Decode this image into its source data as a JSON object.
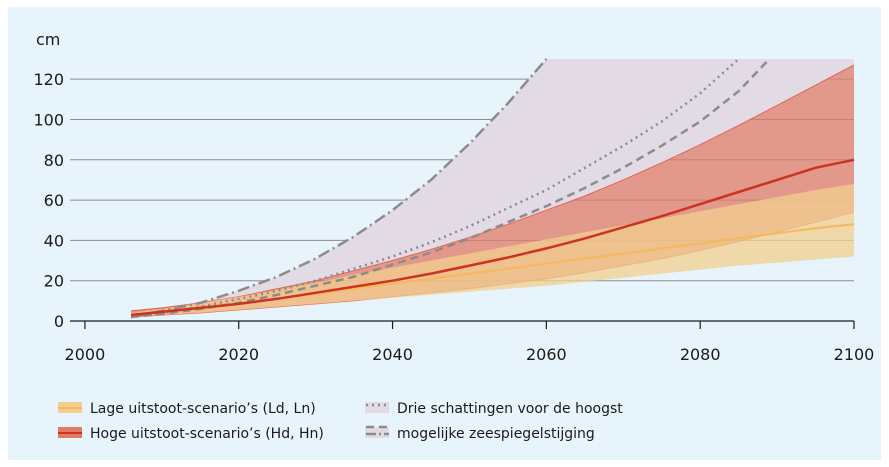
{
  "chart_data": {
    "type": "area",
    "y_unit_label": "cm",
    "xlim": [
      1990,
      2100
    ],
    "ylim": [
      0,
      130
    ],
    "x_ticks": [
      2000,
      2020,
      2040,
      2060,
      2080,
      2100
    ],
    "y_ticks": [
      0,
      20,
      40,
      60,
      80,
      100,
      120
    ],
    "grid": "horizontal",
    "x": [
      2006,
      2010,
      2015,
      2020,
      2025,
      2030,
      2035,
      2040,
      2045,
      2050,
      2055,
      2060,
      2065,
      2070,
      2075,
      2080,
      2085,
      2090,
      2095,
      2100
    ],
    "series": [
      {
        "name": "Lage uitstoot-scenario's (Ld, Ln)",
        "kind": "band",
        "color": "#f6b85c",
        "band_fill": "#f2cf8f",
        "central": [
          3,
          4.5,
          6.5,
          8.5,
          11,
          13.5,
          16,
          18.5,
          21,
          23.5,
          26,
          28.5,
          31,
          33.5,
          36,
          38.5,
          41,
          43.5,
          46,
          48
        ],
        "lower": [
          2,
          3,
          4,
          5.5,
          7,
          8.5,
          10,
          11.5,
          13,
          14.5,
          16,
          17.5,
          19.5,
          21.5,
          23.5,
          25.5,
          27.5,
          29,
          30.5,
          32
        ],
        "upper": [
          4,
          6,
          9,
          12,
          15.5,
          19,
          23,
          26.5,
          30,
          33.5,
          37,
          40.5,
          44,
          47.5,
          51,
          54.5,
          58,
          61.5,
          65,
          68
        ]
      },
      {
        "name": "Hoge uitstoot-scenario's (Hd, Hn)",
        "kind": "band",
        "color": "#cc3321",
        "band_fill": "#e07b66",
        "central": [
          3,
          4.5,
          6.5,
          8.5,
          11,
          14,
          17,
          20,
          23.5,
          27.5,
          31.5,
          36,
          41,
          46.5,
          52,
          58,
          64,
          70,
          76,
          80
        ],
        "lower": [
          2,
          3,
          4,
          5.5,
          7,
          8.5,
          10,
          12,
          14,
          16,
          18.5,
          21,
          24,
          27.5,
          31,
          35,
          39.5,
          44,
          49,
          54
        ],
        "upper": [
          5,
          6.5,
          9,
          12,
          16,
          20,
          25,
          30,
          35.5,
          41.5,
          48,
          55,
          62,
          70,
          78.5,
          87.5,
          97,
          107,
          117,
          127
        ]
      },
      {
        "name": "Drie schattingen voor de hoogst mogelijke zeespiegelstijging",
        "kind": "upper-envelope",
        "band_fill": "#e2dbe5",
        "curves": [
          {
            "style": "dashdot",
            "color": "#8c8c8c",
            "x": [
              2006,
              2010,
              2015,
              2020,
              2025,
              2030,
              2035,
              2040,
              2045,
              2050,
              2055,
              2060
            ],
            "y": [
              2,
              5,
              9,
              15,
              22,
              31,
              42,
              55,
              70,
              88,
              108,
              130
            ]
          },
          {
            "style": "dotted",
            "color": "#8c8c8c",
            "x": [
              2006,
              2010,
              2015,
              2020,
              2025,
              2030,
              2035,
              2040,
              2045,
              2050,
              2055,
              2060,
              2065,
              2070,
              2075,
              2080,
              2085
            ],
            "y": [
              2,
              4,
              7,
              11,
              15,
              20,
              26,
              32,
              39,
              47,
              56,
              65,
              76,
              87,
              99,
              113,
              130
            ]
          },
          {
            "style": "dashed",
            "color": "#8c8c8c",
            "x": [
              2006,
              2010,
              2015,
              2020,
              2025,
              2030,
              2035,
              2040,
              2045,
              2050,
              2055,
              2060,
              2065,
              2070,
              2075,
              2080,
              2085,
              2089
            ],
            "y": [
              2,
              3.5,
              6,
              9,
              13,
              17.5,
              22,
              28,
              34,
              41,
              49,
              57,
              66,
              76,
              87,
              99,
              114,
              130
            ]
          }
        ]
      }
    ],
    "legend": {
      "placement": "bottom",
      "items": [
        {
          "swatch": "band",
          "fill": "#f2cf8f",
          "line": "#f6b85c",
          "label": "Lage uitstoot-scenario’s (Ld, Ln)"
        },
        {
          "swatch": "band",
          "fill": "#e07b66",
          "line": "#cc3321",
          "label": "Hoge uitstoot-scenario’s (Hd, Hn)"
        },
        {
          "swatch": "dotted",
          "fill": "#e2dbe5",
          "line": "#8c8c8c",
          "label": "Drie schattingen voor de hoogst"
        },
        {
          "swatch": "dashed+dashdot",
          "fill": "#e2dbe5",
          "line": "#8c8c8c",
          "label": "mogelijke zeespiegelstijging"
        }
      ]
    }
  }
}
